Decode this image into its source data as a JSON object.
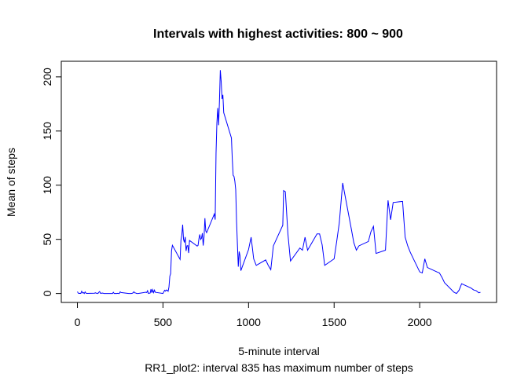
{
  "chart_data": {
    "type": "line",
    "title": "Intervals with highest activities: 800 ~ 900",
    "xlabel": "5-minute interval",
    "ylabel": "Mean of steps",
    "subtitle": "RR1_plot2: interval 835 has maximum number of steps",
    "x": [
      0,
      5,
      10,
      15,
      20,
      25,
      30,
      35,
      40,
      45,
      50,
      55,
      100,
      105,
      110,
      115,
      120,
      125,
      130,
      135,
      140,
      145,
      150,
      155,
      200,
      205,
      210,
      215,
      220,
      225,
      230,
      235,
      240,
      245,
      250,
      255,
      300,
      305,
      310,
      315,
      320,
      325,
      330,
      335,
      340,
      345,
      350,
      355,
      400,
      405,
      410,
      415,
      420,
      425,
      430,
      435,
      440,
      445,
      450,
      455,
      500,
      505,
      510,
      515,
      520,
      525,
      530,
      535,
      540,
      545,
      550,
      555,
      600,
      605,
      610,
      615,
      620,
      625,
      630,
      635,
      640,
      645,
      650,
      655,
      700,
      705,
      710,
      715,
      720,
      725,
      730,
      735,
      740,
      745,
      750,
      755,
      800,
      805,
      810,
      815,
      820,
      825,
      830,
      835,
      840,
      845,
      850,
      855,
      900,
      905,
      910,
      915,
      920,
      925,
      930,
      935,
      940,
      945,
      950,
      955,
      1000,
      1015,
      1030,
      1045,
      1100,
      1115,
      1130,
      1145,
      1200,
      1205,
      1215,
      1230,
      1245,
      1300,
      1315,
      1330,
      1345,
      1400,
      1415,
      1430,
      1445,
      1500,
      1515,
      1530,
      1550,
      1600,
      1615,
      1630,
      1645,
      1700,
      1715,
      1730,
      1745,
      1800,
      1815,
      1830,
      1845,
      1900,
      1915,
      1930,
      1945,
      2000,
      2015,
      2030,
      2045,
      2100,
      2115,
      2130,
      2145,
      2200,
      2215,
      2230,
      2245,
      2300,
      2315,
      2330,
      2345,
      2355
    ],
    "series": [
      {
        "name": "Mean of steps",
        "color": "#0000ff",
        "values": [
          1.7,
          0.3,
          0.1,
          0.2,
          0.1,
          2.1,
          0.5,
          0.9,
          0,
          1.5,
          0.3,
          0.1,
          0.3,
          0.7,
          0.2,
          0.3,
          0,
          1.1,
          1.8,
          0.2,
          0.2,
          0.4,
          0.3,
          0,
          0,
          0,
          1.1,
          0,
          0,
          0.1,
          0,
          0.2,
          0,
          0,
          1.5,
          0.9,
          0,
          0,
          0,
          0,
          0.2,
          0.6,
          1.6,
          0.6,
          0.5,
          0.1,
          0,
          0,
          1.2,
          0.9,
          2.6,
          0,
          0.3,
          0.4,
          4.1,
          0.7,
          3.5,
          0.8,
          3.1,
          1.1,
          0,
          1.6,
          3,
          2.2,
          3.3,
          3,
          2.1,
          6.1,
          16,
          18.3,
          39.5,
          44.5,
          31.5,
          49.3,
          53.8,
          63.5,
          50,
          47.1,
          52.2,
          39.3,
          44,
          44.2,
          37.4,
          49,
          43.8,
          44.4,
          50.5,
          54.5,
          49.9,
          51,
          55.7,
          44.3,
          52.3,
          69.5,
          57.8,
          56.2,
          73.4,
          68.2,
          129.4,
          157.5,
          171.2,
          155.4,
          177.3,
          206.2,
          195.9,
          179.6,
          183.4,
          167,
          143.5,
          124,
          109.1,
          108.1,
          103.7,
          95.9,
          66.2,
          45.2,
          24.8,
          38.8,
          35,
          21.1,
          40.6,
          52,
          32,
          26,
          31,
          26,
          22,
          44,
          63,
          95,
          94,
          55,
          30,
          42,
          40,
          52,
          40,
          55,
          55,
          45,
          26,
          32,
          48,
          65,
          102,
          60,
          47,
          40,
          44,
          48,
          57,
          62,
          37,
          40,
          86,
          68,
          84,
          85,
          52,
          44,
          38,
          20,
          19,
          32,
          24,
          20,
          19,
          15,
          10,
          1.2,
          0,
          3,
          9,
          5,
          3.3,
          2.6,
          0.7,
          1.1
        ]
      }
    ],
    "xlim": [
      -94.2,
      2449.2
    ],
    "ylim": [
      -8.25,
      214.4
    ],
    "xticks": [
      0,
      500,
      1000,
      1500,
      2000
    ],
    "yticks": [
      0,
      50,
      100,
      150,
      200
    ]
  }
}
